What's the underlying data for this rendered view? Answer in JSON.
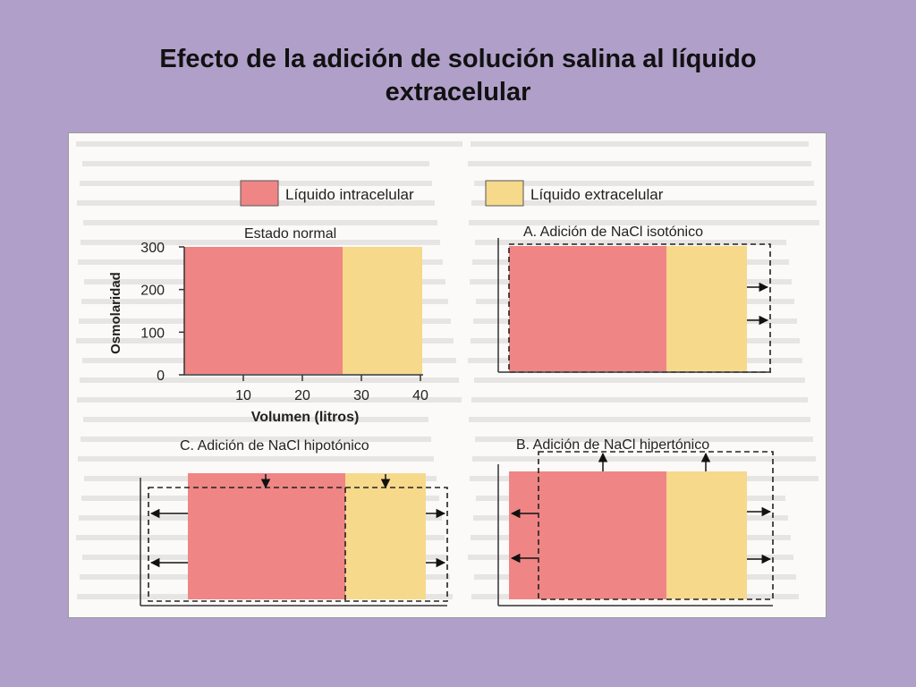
{
  "slide": {
    "title_line1": "Efecto de la adición de solución salina al líquido",
    "title_line2": "extracelular"
  },
  "colors": {
    "background": "#b09fc9",
    "intracellular": "#ef8585",
    "extracellular": "#f6d98b",
    "figure_background": "#fbfaf8"
  },
  "legend": {
    "intracellular": "Líquido intracelular",
    "extracellular": "Líquido extracelular"
  },
  "chart_data": [
    {
      "type": "area",
      "title": "Estado normal",
      "xlabel": "Volumen (litros)",
      "ylabel": "Osmolaridad",
      "x_ticks": [
        "10",
        "20",
        "30",
        "40"
      ],
      "y_ticks": [
        "0",
        "100",
        "200",
        "300"
      ],
      "xlim": [
        0,
        40
      ],
      "ylim": [
        0,
        300
      ],
      "series": [
        {
          "name": "Líquido intracelular",
          "x_range": [
            0,
            28
          ],
          "osmolarity": 300
        },
        {
          "name": "Líquido extracelular",
          "x_range": [
            28,
            42
          ],
          "osmolarity": 300
        }
      ]
    },
    {
      "type": "area",
      "title": "A. Adición de NaCl isotónico",
      "series": [
        {
          "name": "Líquido intracelular",
          "x_range": [
            0,
            28
          ],
          "osmolarity": 300
        },
        {
          "name": "Líquido extracelular",
          "x_range": [
            28,
            42
          ],
          "osmolarity": 300
        }
      ]
    },
    {
      "type": "area",
      "title": "C. Adición de NaCl hipotónico",
      "series": [
        {
          "name": "Líquido intracelular",
          "x_range": [
            0,
            28
          ],
          "osmolarity": 300
        },
        {
          "name": "Líquido extracelular",
          "x_range": [
            28,
            42
          ],
          "osmolarity": 300
        }
      ]
    },
    {
      "type": "area",
      "title": "B. Adición de NaCl hipertónico",
      "series": [
        {
          "name": "Líquido intracelular",
          "x_range": [
            0,
            28
          ],
          "osmolarity": 300
        },
        {
          "name": "Líquido extracelular",
          "x_range": [
            28,
            42
          ],
          "osmolarity": 300
        }
      ]
    }
  ]
}
